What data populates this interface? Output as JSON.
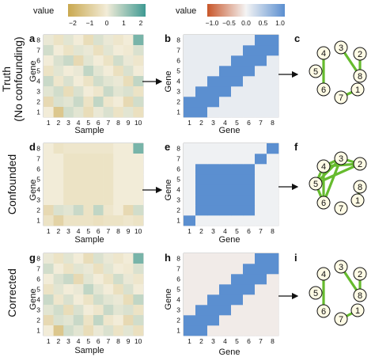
{
  "legend_left": {
    "title": "value",
    "ticks": [
      "−2",
      "−1",
      "0",
      "1",
      "2"
    ],
    "colors": [
      "#c9a84f",
      "#f2ecd8",
      "#3f9a93"
    ]
  },
  "legend_right": {
    "title": "value",
    "ticks": [
      "−1.0",
      "−0.5",
      "0.0",
      "0.5",
      "1.0"
    ],
    "colors": [
      "#c8562a",
      "#f4f4f4",
      "#5b8fd0"
    ]
  },
  "rows": [
    {
      "label": "Truth",
      "sublabel": "(No confounding)",
      "panels": {
        "expr": {
          "letter": "a",
          "xlabel": "Sample",
          "ylabel": "Gene"
        },
        "corr": {
          "letter": "b",
          "xlabel": "Gene",
          "ylabel": "Gene"
        },
        "net": {
          "letter": "c"
        }
      }
    },
    {
      "label": "Confounded",
      "sublabel": "",
      "panels": {
        "expr": {
          "letter": "d",
          "xlabel": "Sample",
          "ylabel": "Gene"
        },
        "corr": {
          "letter": "e",
          "xlabel": "Gene",
          "ylabel": "Gene"
        },
        "net": {
          "letter": "f"
        }
      }
    },
    {
      "label": "Corrected",
      "sublabel": "",
      "panels": {
        "expr": {
          "letter": "g",
          "xlabel": "Sample",
          "ylabel": "Gene"
        },
        "corr": {
          "letter": "h",
          "xlabel": "Gene",
          "ylabel": "Gene"
        },
        "net": {
          "letter": "i"
        }
      }
    }
  ],
  "sample_ticks": [
    "1",
    "2",
    "3",
    "4",
    "5",
    "6",
    "7",
    "8",
    "9",
    "10"
  ],
  "gene_ticks": [
    "1",
    "2",
    "3",
    "4",
    "5",
    "6",
    "7",
    "8"
  ],
  "nodes": [
    "1",
    "2",
    "3",
    "4",
    "5",
    "6",
    "7",
    "8"
  ],
  "edge_color": "#66bb2e",
  "node_fill": "#fffbe5",
  "expression": {
    "truth": [
      [
        0.1,
        -0.3,
        0.2,
        0.0,
        -0.5,
        0.3,
        0.1,
        -0.2,
        0.0,
        1.5
      ],
      [
        0.4,
        0.0,
        -0.3,
        0.2,
        0.1,
        -0.4,
        0.2,
        0.0,
        -0.1,
        0.3
      ],
      [
        0.0,
        0.3,
        0.5,
        -0.6,
        0.2,
        0.0,
        -0.3,
        0.4,
        0.1,
        -0.2
      ],
      [
        -0.3,
        0.2,
        0.0,
        0.1,
        0.6,
        0.2,
        0.0,
        -0.4,
        0.3,
        0.0
      ],
      [
        0.5,
        -0.2,
        0.3,
        0.0,
        -0.3,
        0.4,
        0.2,
        0.1,
        -0.5,
        0.6
      ],
      [
        0.2,
        0.4,
        -0.5,
        0.3,
        0.0,
        -0.2,
        0.5,
        0.2,
        0.3,
        -0.3
      ],
      [
        -0.6,
        0.3,
        0.2,
        0.5,
        -0.3,
        0.6,
        -0.2,
        0.0,
        -0.6,
        0.4
      ],
      [
        0.0,
        -1.2,
        0.4,
        0.2,
        -0.5,
        0.1,
        0.3,
        -0.3,
        0.2,
        -0.4
      ]
    ],
    "confounded": [
      [
        0.0,
        -0.3,
        -0.2,
        -0.2,
        -0.2,
        -0.2,
        -0.2,
        0.0,
        0.0,
        1.5
      ],
      [
        0.0,
        0.0,
        -0.3,
        -0.3,
        -0.3,
        -0.3,
        -0.3,
        0.0,
        0.0,
        0.0
      ],
      [
        0.0,
        0.0,
        -0.3,
        -0.3,
        -0.3,
        -0.3,
        -0.3,
        0.0,
        0.0,
        0.0
      ],
      [
        0.0,
        0.0,
        -0.3,
        -0.3,
        -0.3,
        -0.3,
        -0.3,
        0.0,
        0.0,
        0.0
      ],
      [
        0.0,
        0.0,
        -0.3,
        -0.3,
        -0.3,
        -0.3,
        -0.3,
        0.0,
        0.0,
        0.0
      ],
      [
        0.0,
        0.0,
        -0.3,
        -0.3,
        -0.3,
        -0.3,
        -0.3,
        0.0,
        0.0,
        0.0
      ],
      [
        -0.6,
        0.3,
        0.2,
        0.5,
        -0.3,
        0.6,
        -0.2,
        0.0,
        -0.6,
        0.4
      ],
      [
        -0.3,
        -0.8,
        -0.3,
        -0.3,
        -0.3,
        -0.4,
        -0.3,
        -0.3,
        -0.2,
        -0.3
      ]
    ],
    "corrected": [
      [
        0.1,
        -0.3,
        0.2,
        0.0,
        -0.5,
        0.3,
        0.1,
        -0.2,
        0.0,
        1.5
      ],
      [
        0.4,
        0.0,
        -0.3,
        0.2,
        0.1,
        -0.4,
        0.2,
        0.0,
        -0.1,
        0.3
      ],
      [
        0.0,
        0.3,
        0.5,
        -0.6,
        0.2,
        0.0,
        -0.3,
        0.4,
        0.1,
        -0.2
      ],
      [
        -0.3,
        0.2,
        0.0,
        0.1,
        0.6,
        0.2,
        0.0,
        -0.4,
        0.3,
        0.0
      ],
      [
        0.5,
        -0.2,
        0.3,
        0.0,
        -0.3,
        0.4,
        0.2,
        0.1,
        -0.5,
        0.6
      ],
      [
        0.2,
        0.4,
        -0.5,
        0.3,
        0.0,
        -0.2,
        0.5,
        0.2,
        0.3,
        -0.3
      ],
      [
        -0.6,
        0.3,
        0.2,
        0.5,
        -0.3,
        0.6,
        -0.2,
        0.0,
        -0.6,
        0.4
      ],
      [
        0.0,
        -1.2,
        0.4,
        0.2,
        -0.5,
        0.1,
        0.3,
        -0.3,
        0.2,
        -0.4
      ]
    ]
  },
  "correlation_structure": {
    "truth": {
      "pairs": [
        [
          1,
          2
        ],
        [
          2,
          3
        ],
        [
          3,
          4
        ],
        [
          4,
          5
        ],
        [
          5,
          6
        ],
        [
          6,
          7
        ],
        [
          7,
          8
        ]
      ],
      "pair_value": 1.0,
      "faint": 0.08,
      "block": null
    },
    "confounded": {
      "pairs": [],
      "pair_value": 1.0,
      "faint": 0.03,
      "block": [
        2,
        6
      ]
    },
    "corrected": {
      "pairs": [
        [
          1,
          2
        ],
        [
          2,
          3
        ],
        [
          3,
          4
        ],
        [
          4,
          5
        ],
        [
          5,
          6
        ],
        [
          6,
          7
        ],
        [
          7,
          8
        ]
      ],
      "pair_value": 1.0,
      "faint": -0.06,
      "block": null
    }
  },
  "networks": {
    "truth": [
      [
        3,
        8
      ],
      [
        4,
        6
      ],
      [
        2,
        8
      ],
      [
        1,
        7
      ]
    ],
    "confounded": [
      [
        3,
        4
      ],
      [
        3,
        5
      ],
      [
        3,
        6
      ],
      [
        3,
        2
      ],
      [
        4,
        5
      ],
      [
        4,
        6
      ],
      [
        5,
        6
      ],
      [
        5,
        2
      ],
      [
        4,
        2
      ],
      [
        1,
        8
      ]
    ],
    "corrected": [
      [
        3,
        8
      ],
      [
        4,
        6
      ],
      [
        2,
        8
      ],
      [
        1,
        7
      ]
    ]
  }
}
